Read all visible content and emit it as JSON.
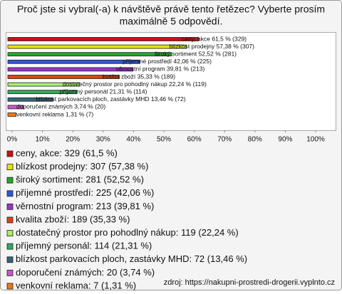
{
  "chart_data": {
    "type": "hbar",
    "title": [
      "Proč jste si vybral(-a) k návštěvě právě tento řetězec? Vyberte prosím",
      "maximálně 5 odpovědí."
    ],
    "categories": [
      "ceny, akce: 329 (61,5 %)",
      "blízkost prodejny: 307 (57,38 %)",
      "široký sortiment: 281 (52,52 %)",
      "příjemné prostředí: 225 (42,06 %)",
      "věrnostní program: 213 (39,81 %)",
      "kvalita zboží: 189 (35,33 %)",
      "dostatečný prostor pro pohodlný nákup: 119 (22,24 %)",
      "příjemný personál: 114 (21,31 %)",
      "blízkost parkovacích ploch, zastávky MHD: 72 (13,46 %)",
      "doporučení známých: 20 (3,74 %)",
      "venkovní reklama: 7 (1,31 %)"
    ],
    "values": [
      61.5,
      57.38,
      52.52,
      42.06,
      39.81,
      35.33,
      22.24,
      21.31,
      13.46,
      3.74,
      1.31
    ],
    "value_labels": [
      "ceny, akce 61,5 % (329)",
      "blízkost prodejny 57,38 % (307)",
      "široký sortiment 52,52 % (281)",
      "příjemné prostředí 42,06 % (225)",
      "věrnostní program 39,81 % (213)",
      "kvalita zboží 35,33 % (189)",
      "dostatečný prostor pro pohodlný nákup 22,24 % (119)",
      "příjemný personál 21,31 % (114)",
      "blízkost parkovacích ploch, zastávky MHD 13,46 % (72)",
      "doporučení známých 3,74 % (20)",
      "venkovní reklama 1,31 % (7)"
    ],
    "colors": [
      "#cc1111",
      "#e8e010",
      "#22aa22",
      "#3355dd",
      "#9933cc",
      "#dd4411",
      "#aaee66",
      "#33aa55",
      "#336677",
      "#cc55cc",
      "#ee7711"
    ],
    "xlim": [
      0,
      100
    ],
    "xticks": [
      {
        "value": 0,
        "label": "0%"
      },
      {
        "value": 10,
        "label": "10%"
      },
      {
        "value": 20,
        "label": "20%"
      },
      {
        "value": 30,
        "label": "30%"
      },
      {
        "value": 40,
        "label": "40%"
      },
      {
        "value": 50,
        "label": "50%"
      },
      {
        "value": 60,
        "label": "60%"
      },
      {
        "value": 70,
        "label": "70%"
      },
      {
        "value": 80,
        "label": "80%"
      },
      {
        "value": 90,
        "label": "90%"
      },
      {
        "value": 100,
        "label": "100%"
      }
    ],
    "source": "zdroj: https://nakupni-prostredi-drogerii.vyplnto.cz"
  }
}
